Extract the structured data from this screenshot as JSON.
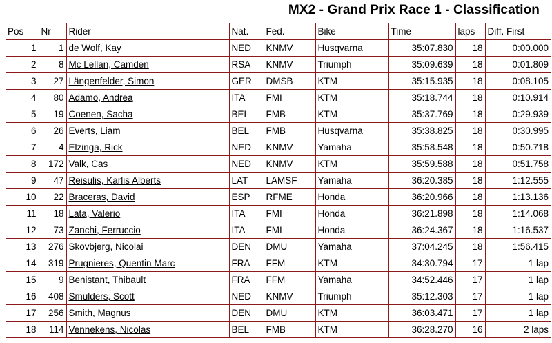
{
  "title": "MX2 - Grand Prix Race 1 - Classification",
  "headers": {
    "pos": "Pos",
    "nr": "Nr",
    "rider": "Rider",
    "nat": "Nat.",
    "fed": "Fed.",
    "bike": "Bike",
    "time": "Time",
    "laps": "laps",
    "diff": "Diff. First"
  },
  "rows": [
    {
      "pos": "1",
      "nr": "1",
      "rider": "de Wolf, Kay",
      "nat": "NED",
      "fed": "KNMV",
      "bike": "Husqvarna",
      "time": "35:07.830",
      "laps": "18",
      "diff": "0:00.000"
    },
    {
      "pos": "2",
      "nr": "8",
      "rider": "Mc Lellan, Camden",
      "nat": "RSA",
      "fed": "KNMV",
      "bike": "Triumph",
      "time": "35:09.639",
      "laps": "18",
      "diff": "0:01.809"
    },
    {
      "pos": "3",
      "nr": "27",
      "rider": "Längenfelder, Simon",
      "nat": "GER",
      "fed": "DMSB",
      "bike": "KTM",
      "time": "35:15.935",
      "laps": "18",
      "diff": "0:08.105"
    },
    {
      "pos": "4",
      "nr": "80",
      "rider": "Adamo, Andrea",
      "nat": "ITA",
      "fed": "FMI",
      "bike": "KTM",
      "time": "35:18.744",
      "laps": "18",
      "diff": "0:10.914"
    },
    {
      "pos": "5",
      "nr": "19",
      "rider": "Coenen, Sacha",
      "nat": "BEL",
      "fed": "FMB",
      "bike": "KTM",
      "time": "35:37.769",
      "laps": "18",
      "diff": "0:29.939"
    },
    {
      "pos": "6",
      "nr": "26",
      "rider": "Everts, Liam",
      "nat": "BEL",
      "fed": "FMB",
      "bike": "Husqvarna",
      "time": "35:38.825",
      "laps": "18",
      "diff": "0:30.995"
    },
    {
      "pos": "7",
      "nr": "4",
      "rider": "Elzinga, Rick",
      "nat": "NED",
      "fed": "KNMV",
      "bike": "Yamaha",
      "time": "35:58.548",
      "laps": "18",
      "diff": "0:50.718"
    },
    {
      "pos": "8",
      "nr": "172",
      "rider": "Valk, Cas",
      "nat": "NED",
      "fed": "KNMV",
      "bike": "KTM",
      "time": "35:59.588",
      "laps": "18",
      "diff": "0:51.758"
    },
    {
      "pos": "9",
      "nr": "47",
      "rider": "Reisulis, Karlis Alberts",
      "nat": "LAT",
      "fed": "LAMSF",
      "bike": "Yamaha",
      "time": "36:20.385",
      "laps": "18",
      "diff": "1:12.555"
    },
    {
      "pos": "10",
      "nr": "22",
      "rider": "Braceras, David",
      "nat": "ESP",
      "fed": "RFME",
      "bike": "Honda",
      "time": "36:20.966",
      "laps": "18",
      "diff": "1:13.136"
    },
    {
      "pos": "11",
      "nr": "18",
      "rider": "Lata, Valerio",
      "nat": "ITA",
      "fed": "FMI",
      "bike": "Honda",
      "time": "36:21.898",
      "laps": "18",
      "diff": "1:14.068"
    },
    {
      "pos": "12",
      "nr": "73",
      "rider": "Zanchi, Ferruccio",
      "nat": "ITA",
      "fed": "FMI",
      "bike": "Honda",
      "time": "36:24.367",
      "laps": "18",
      "diff": "1:16.537"
    },
    {
      "pos": "13",
      "nr": "276",
      "rider": "Skovbjerg, Nicolai",
      "nat": "DEN",
      "fed": "DMU",
      "bike": "Yamaha",
      "time": "37:04.245",
      "laps": "18",
      "diff": "1:56.415"
    },
    {
      "pos": "14",
      "nr": "319",
      "rider": "Prugnieres, Quentin Marc",
      "nat": "FRA",
      "fed": "FFM",
      "bike": "KTM",
      "time": "34:30.794",
      "laps": "17",
      "diff": "1 lap"
    },
    {
      "pos": "15",
      "nr": "9",
      "rider": "Benistant, Thibault",
      "nat": "FRA",
      "fed": "FFM",
      "bike": "Yamaha",
      "time": "34:52.446",
      "laps": "17",
      "diff": "1 lap"
    },
    {
      "pos": "16",
      "nr": "408",
      "rider": "Smulders, Scott",
      "nat": "NED",
      "fed": "KNMV",
      "bike": "Triumph",
      "time": "35:12.303",
      "laps": "17",
      "diff": "1 lap"
    },
    {
      "pos": "17",
      "nr": "256",
      "rider": "Smith, Magnus",
      "nat": "DEN",
      "fed": "DMU",
      "bike": "KTM",
      "time": "36:03.471",
      "laps": "17",
      "diff": "1 lap"
    },
    {
      "pos": "18",
      "nr": "114",
      "rider": "Vennekens, Nicolas",
      "nat": "BEL",
      "fed": "FMB",
      "bike": "KTM",
      "time": "36:28.270",
      "laps": "16",
      "diff": "2 laps"
    }
  ]
}
